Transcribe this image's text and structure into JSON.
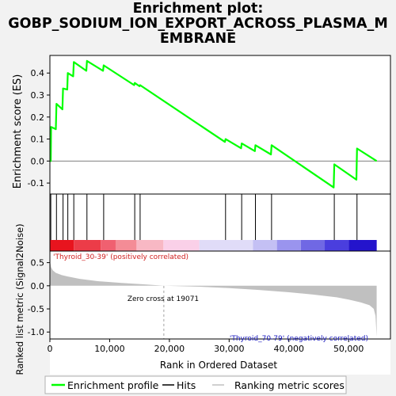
{
  "title_lines": [
    "Enrichment plot:",
    "GOBP_SODIUM_ION_EXPORT_ACROSS_PLASMA_M",
    "EMBRANE"
  ],
  "colors": {
    "es_line": "#00ff00",
    "hits": "#000000",
    "metric_fill": "#c0c0c0",
    "positive_label": "#d02020",
    "negative_label": "#2020c0",
    "zero_cross": "#a0a0a0"
  },
  "chart_data": [
    {
      "type": "line",
      "name": "enrichment-score",
      "ylabel": "Enrichment score (ES)",
      "ylim": [
        -0.15,
        0.48
      ],
      "yticks": [
        -0.1,
        0.0,
        0.1,
        0.2,
        0.3,
        0.4
      ],
      "ytick_labels": [
        "-0.1",
        "0.0",
        "0.1",
        "0.2",
        "0.3",
        "0.4"
      ],
      "xlim": [
        0,
        57000
      ],
      "series": [
        {
          "name": "Enrichment profile",
          "x": [
            0,
            150,
            200,
            1000,
            1100,
            2100,
            2200,
            2900,
            3000,
            3900,
            4000,
            6100,
            6200,
            8900,
            9000,
            14100,
            14200,
            15000,
            15100,
            29300,
            29400,
            32000,
            32100,
            34300,
            34400,
            37000,
            37100,
            47500,
            47600,
            51300,
            51400,
            54700
          ],
          "y": [
            0.0,
            0.0,
            0.155,
            0.145,
            0.26,
            0.235,
            0.33,
            0.325,
            0.4,
            0.385,
            0.45,
            0.41,
            0.455,
            0.41,
            0.435,
            0.345,
            0.355,
            0.34,
            0.345,
            0.087,
            0.1,
            0.058,
            0.08,
            0.045,
            0.072,
            0.03,
            0.072,
            -0.12,
            -0.015,
            -0.085,
            0.057,
            0.0
          ]
        }
      ]
    },
    {
      "type": "scatter",
      "name": "hits",
      "x": [
        150,
        1100,
        2200,
        3000,
        4000,
        6200,
        9000,
        14200,
        15100,
        29400,
        32100,
        34400,
        37100,
        47600,
        51400
      ]
    },
    {
      "type": "heatmap",
      "name": "ranking-heatmap",
      "segments": [
        {
          "from": 0,
          "to": 4000,
          "color": "#e8141e"
        },
        {
          "from": 4000,
          "to": 8500,
          "color": "#ec3c48"
        },
        {
          "from": 8500,
          "to": 11000,
          "color": "#f06070"
        },
        {
          "from": 11000,
          "to": 14500,
          "color": "#f48c96"
        },
        {
          "from": 14500,
          "to": 19000,
          "color": "#f8b8c4"
        },
        {
          "from": 19000,
          "to": 25000,
          "color": "#fad0e8"
        },
        {
          "from": 25000,
          "to": 34000,
          "color": "#e0dcf8"
        },
        {
          "from": 34000,
          "to": 38000,
          "color": "#c4c0f4"
        },
        {
          "from": 38000,
          "to": 42000,
          "color": "#9a94ee"
        },
        {
          "from": 42000,
          "to": 46000,
          "color": "#7068e4"
        },
        {
          "from": 46000,
          "to": 50000,
          "color": "#4a3ede"
        },
        {
          "from": 50000,
          "to": 54700,
          "color": "#2414cc"
        }
      ]
    },
    {
      "type": "area",
      "name": "ranked-list-metric",
      "ylabel": "Ranked list metric (Signal2Noise)",
      "xlabel": "Rank in Ordered Dataset",
      "ylim": [
        -1.15,
        0.75
      ],
      "yticks": [
        -1.0,
        -0.5,
        0.0,
        0.5
      ],
      "ytick_labels": [
        "-1.0",
        "-0.5",
        "0.0",
        "0.5"
      ],
      "xticks": [
        0,
        10000,
        20000,
        30000,
        40000,
        50000
      ],
      "xtick_labels": [
        "0",
        "10,000",
        "20,000",
        "30,000",
        "40,000",
        "50,000"
      ],
      "x": [
        0,
        50,
        200,
        500,
        1000,
        2000,
        3000,
        5000,
        8000,
        12000,
        16000,
        19071,
        25000,
        30000,
        35000,
        40000,
        44000,
        48000,
        50000,
        52000,
        53500,
        54200,
        54500,
        54700
      ],
      "y": [
        0.8,
        0.5,
        0.4,
        0.33,
        0.28,
        0.23,
        0.2,
        0.15,
        0.1,
        0.06,
        0.03,
        0.0,
        -0.02,
        -0.05,
        -0.09,
        -0.14,
        -0.19,
        -0.25,
        -0.3,
        -0.36,
        -0.42,
        -0.5,
        -0.65,
        -1.1
      ],
      "annotations": {
        "positive": "'Thyroid_30-39' (positively correlated)",
        "negative": "'Thyroid_70-79' (negatively correlated)",
        "zero_cross": "Zero cross at 19071",
        "zero_cross_x": 19071
      }
    }
  ],
  "legend": {
    "items": [
      {
        "label": "Enrichment profile",
        "color": "#00ff00"
      },
      {
        "label": "Hits",
        "color": "#000000"
      },
      {
        "label": "Ranking metric scores",
        "color": "#c0c0c0"
      }
    ]
  }
}
